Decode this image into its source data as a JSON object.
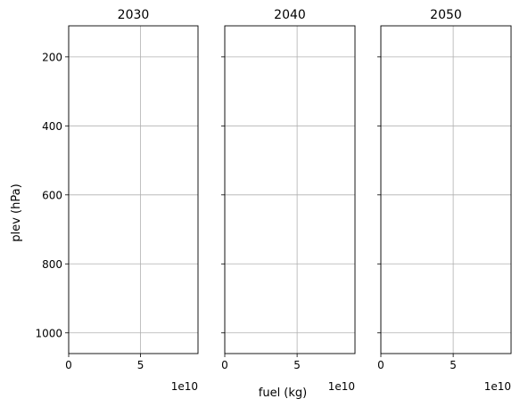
{
  "figure": {
    "shared_ylabel": "plev (hPa)",
    "shared_xlabel": "fuel (kg)",
    "x_offset_text": "1e10"
  },
  "chart_data": {
    "type": "step",
    "orientation": "horizontal",
    "ylabel": "plev (hPa)",
    "xlabel": "fuel (kg)",
    "x_scale_exponent": "1e10",
    "ylim": [
      1060,
      110
    ],
    "y_inverted": true,
    "xlim": [
      0,
      9
    ],
    "yticks": [
      200,
      400,
      600,
      800,
      1000
    ],
    "xticks": [
      0,
      5
    ],
    "grid": true,
    "series_color": "#1f77b4",
    "levels": [
      100,
      125,
      150,
      175,
      200,
      225,
      250,
      275,
      300,
      325,
      350,
      375,
      400,
      425,
      450,
      475,
      500,
      525,
      550,
      575,
      600,
      625,
      650,
      675,
      700,
      725,
      750,
      775,
      800,
      825,
      850,
      875,
      900,
      925,
      950,
      975,
      1000,
      1025
    ],
    "panels": [
      {
        "title": "2030",
        "values": [
          0.0,
          0.0,
          0.0,
          0.0,
          0.0,
          0.0,
          0.0,
          0.0,
          0.0,
          0.0,
          0.0,
          0.0,
          0.0,
          0.0,
          0.0,
          0.0,
          0.0,
          0.0,
          0.0,
          0.0,
          0.0,
          0.0,
          0.0,
          0.0,
          0.0,
          0.0,
          0.0,
          0.0,
          0.0,
          0.0,
          0.0,
          0.0,
          0.0,
          0.0,
          0.0,
          0.0,
          0.0
        ]
      },
      {
        "title": "2040",
        "values": [
          0.0,
          0.0,
          0.0,
          0.0,
          0.0,
          0.0,
          0.0,
          0.0,
          0.0,
          0.0,
          0.0,
          0.0,
          0.0,
          0.0,
          0.0,
          0.0,
          0.0,
          0.0,
          0.0,
          0.0,
          0.0,
          0.0,
          0.0,
          0.0,
          0.0,
          0.0,
          0.0,
          0.0,
          0.0,
          0.0,
          0.0,
          0.0,
          0.0,
          0.0,
          0.0,
          0.0,
          0.0
        ]
      },
      {
        "title": "2050",
        "values": [
          0.0,
          0.0,
          0.0,
          0.0,
          0.0,
          0.0,
          0.0,
          0.0,
          0.0,
          0.0,
          0.0,
          0.0,
          0.0,
          0.0,
          0.0,
          0.0,
          0.0,
          0.0,
          0.0,
          0.0,
          0.0,
          0.0,
          0.0,
          0.0,
          0.0,
          0.0,
          0.0,
          0.0,
          0.0,
          0.0,
          0.0,
          0.0,
          0.0,
          0.0,
          0.0,
          0.0,
          0.0
        ]
      }
    ]
  }
}
